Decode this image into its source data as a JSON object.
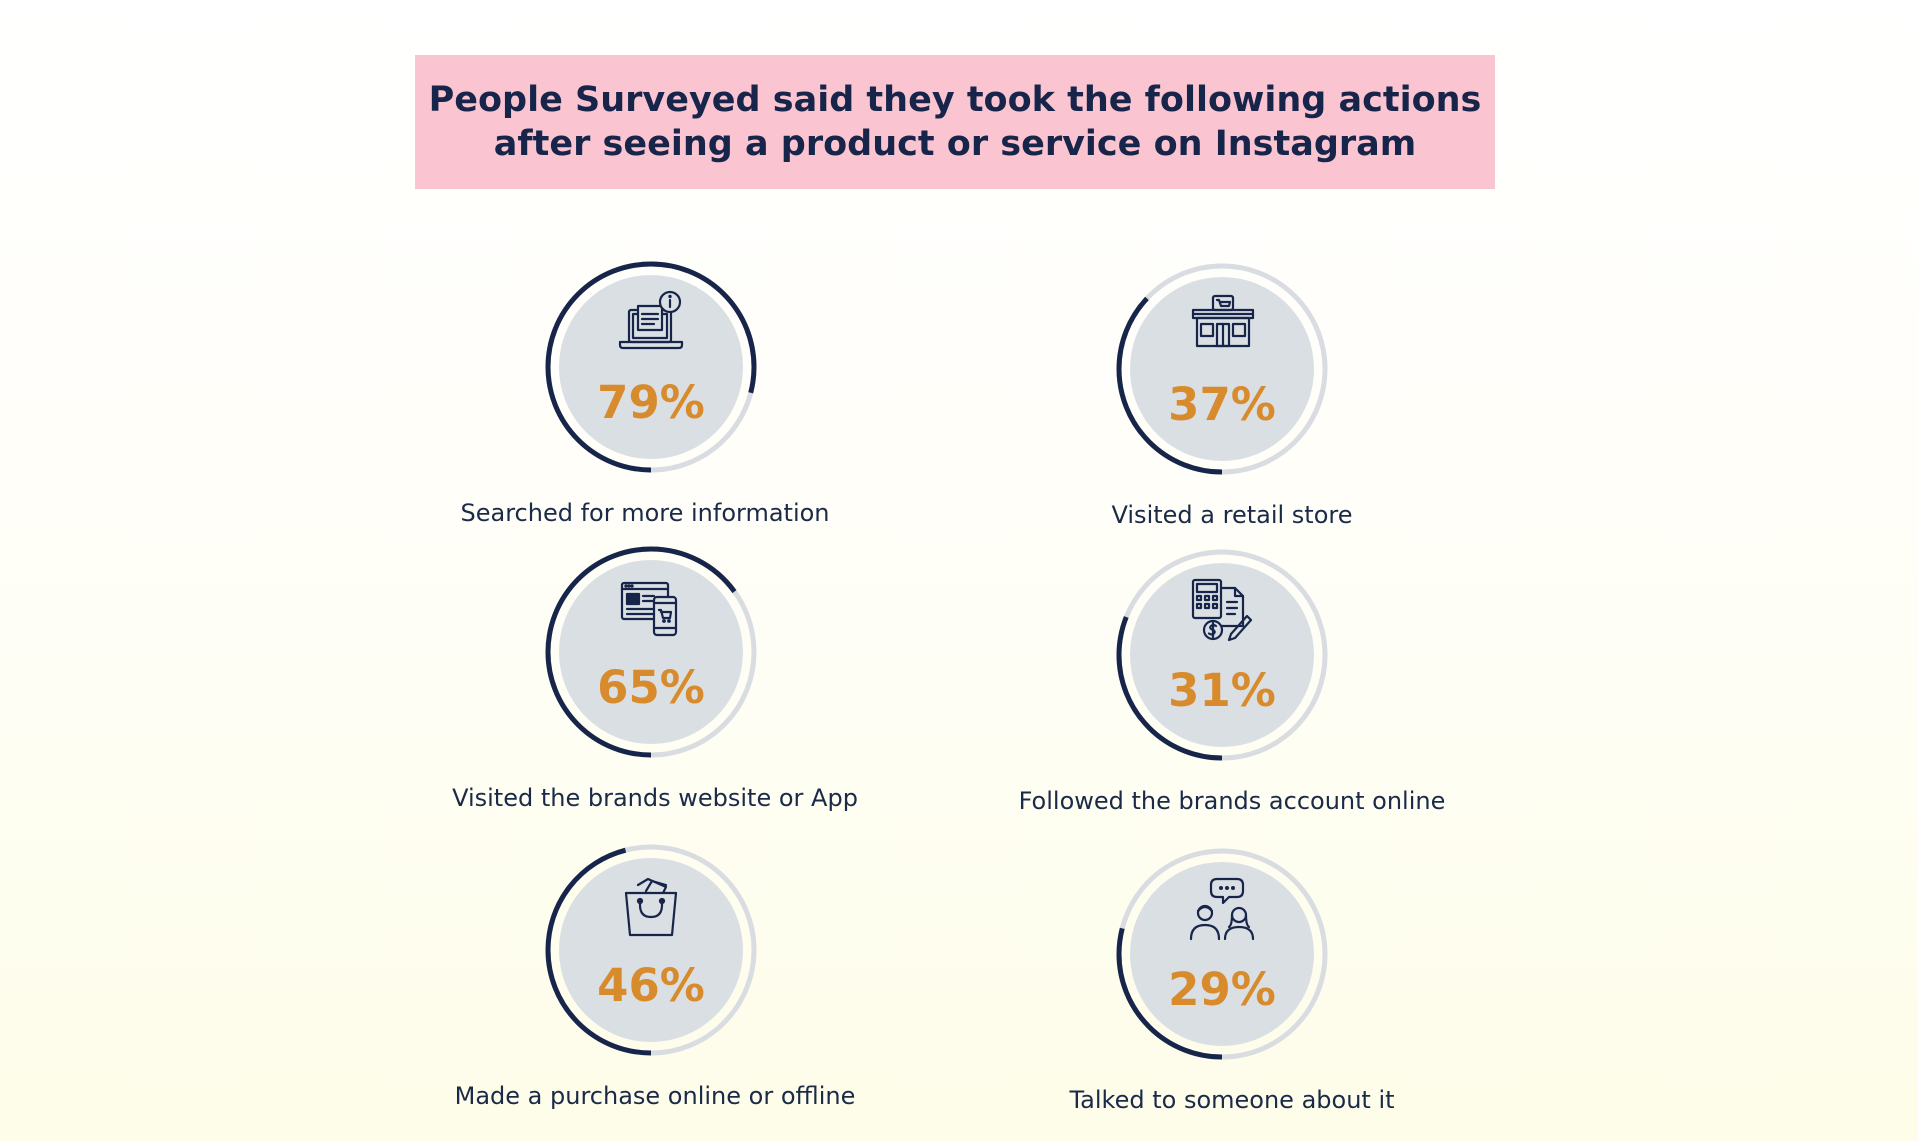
{
  "title_line1": "People Surveyed said they took the following actions",
  "title_line2": "after seeing a product or service on Instagram",
  "colors": {
    "header_bg": "#fac5d1",
    "ring_dark": "#17254a",
    "ring_light": "#d9dde1",
    "disc": "#dadfe3",
    "percent": "#d88b2c",
    "text": "#1a2a48"
  },
  "chart_data": {
    "type": "bar",
    "unit": "%",
    "categories": [
      "Searched for more information",
      "Visited a retail store",
      "Visited the brands website or App",
      "Followed the brands account online",
      "Made a purchase online or offline",
      "Talked to someone about it"
    ],
    "values": [
      79,
      37,
      65,
      31,
      46,
      29
    ],
    "items": [
      {
        "label": "Searched for more information",
        "value": 79,
        "value_label": "79%",
        "icon": "laptop-info-icon"
      },
      {
        "label": "Visited a retail store",
        "value": 37,
        "value_label": "37%",
        "icon": "store-icon"
      },
      {
        "label": "Visited the brands website or App",
        "value": 65,
        "value_label": "65%",
        "icon": "website-app-icon"
      },
      {
        "label": "Followed the brands account online",
        "value": 31,
        "value_label": "31%",
        "icon": "calculator-invoice-icon"
      },
      {
        "label": "Made a purchase online or offline",
        "value": 46,
        "value_label": "46%",
        "icon": "shopping-bag-icon"
      },
      {
        "label": "Talked to someone about it",
        "value": 29,
        "value_label": "29%",
        "icon": "people-talking-icon"
      }
    ]
  }
}
